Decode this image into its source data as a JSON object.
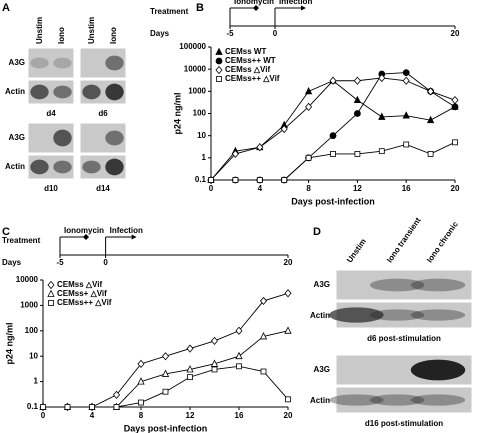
{
  "panel_labels": [
    "A",
    "B",
    "C",
    "D"
  ],
  "panel_a": {
    "columns": [
      "Unstim",
      "Iono"
    ],
    "rows": [
      "A3G",
      "Actin"
    ],
    "days": [
      "d4",
      "d6",
      "d10",
      "d14"
    ]
  },
  "panel_d": {
    "columns": [
      "Unstim",
      "Iono transient",
      "Iono chronic"
    ],
    "rows": [
      "A3G",
      "Actin"
    ],
    "captions": [
      "d6 post-stimulation",
      "d16 post-stimulation"
    ]
  },
  "chart_data": [
    {
      "type": "line",
      "x_label": "Days post-infection",
      "y_label": "p24 ng/ml",
      "ylog": true,
      "timeline": {
        "label": "Treatment",
        "events": [
          "Ionomycin",
          "Infection"
        ],
        "days_label": "Days",
        "days": [
          -5,
          0,
          20
        ]
      },
      "x": [
        0,
        2,
        4,
        6,
        8,
        10,
        12,
        14,
        16,
        18,
        20
      ],
      "xlim": [
        0,
        20
      ],
      "xticks": [
        0,
        4,
        8,
        12,
        16,
        20
      ],
      "ylim": [
        0.1,
        100000
      ],
      "yticks": [
        0.1,
        1,
        10,
        100,
        1000,
        10000,
        100000
      ],
      "series": [
        {
          "name": "CEMss WT",
          "color": "#000000",
          "marker": "triangle-filled",
          "values": [
            0.1,
            2,
            3,
            30,
            1000,
            3000,
            400,
            70,
            80,
            50,
            200
          ]
        },
        {
          "name": "CEMss++ WT",
          "color": "#000000",
          "marker": "circle-filled",
          "values": [
            0.1,
            0.1,
            0.1,
            0.1,
            1,
            10,
            100,
            6000,
            7000,
            1000,
            200
          ]
        },
        {
          "name": "CEMss △Vif",
          "color": "#000000",
          "marker": "diamond-open",
          "values": [
            0.1,
            1.5,
            3,
            20,
            200,
            3000,
            3000,
            4000,
            3000,
            1000,
            400
          ]
        },
        {
          "name": "CEMss++ △Vif",
          "color": "#000000",
          "marker": "square-open",
          "values": [
            0.1,
            0.1,
            0.1,
            0.1,
            1,
            1.5,
            1.5,
            2,
            4,
            1.5,
            5
          ]
        }
      ]
    },
    {
      "type": "line",
      "x_label": "Days post-infection",
      "y_label": "p24 ng/ml",
      "ylog": true,
      "timeline": {
        "label": "Treatment",
        "events": [
          "Ionomycin",
          "Infection"
        ],
        "days_label": "Days",
        "days": [
          -5,
          0,
          20
        ]
      },
      "x": [
        0,
        2,
        4,
        6,
        8,
        10,
        12,
        14,
        16,
        18,
        20
      ],
      "xlim": [
        0,
        20
      ],
      "xticks": [
        0,
        4,
        8,
        12,
        16,
        20
      ],
      "ylim": [
        0.1,
        10000
      ],
      "yticks": [
        0.1,
        1,
        10,
        100,
        1000,
        10000
      ],
      "series": [
        {
          "name": "CEMss △Vif",
          "color": "#000000",
          "marker": "diamond-open",
          "values": [
            0.1,
            0.1,
            0.1,
            0.3,
            5,
            10,
            20,
            40,
            100,
            1500,
            3000
          ]
        },
        {
          "name": "CEMss+ △Vif",
          "color": "#000000",
          "marker": "triangle-open",
          "values": [
            0.1,
            0.1,
            0.1,
            0.1,
            1,
            2,
            3,
            5,
            10,
            60,
            100
          ]
        },
        {
          "name": "CEMss++ △Vif",
          "color": "#000000",
          "marker": "square-open",
          "values": [
            0.1,
            0.1,
            0.1,
            0.1,
            0.15,
            0.4,
            1.5,
            3,
            4,
            2.5,
            0.2
          ]
        }
      ]
    }
  ]
}
